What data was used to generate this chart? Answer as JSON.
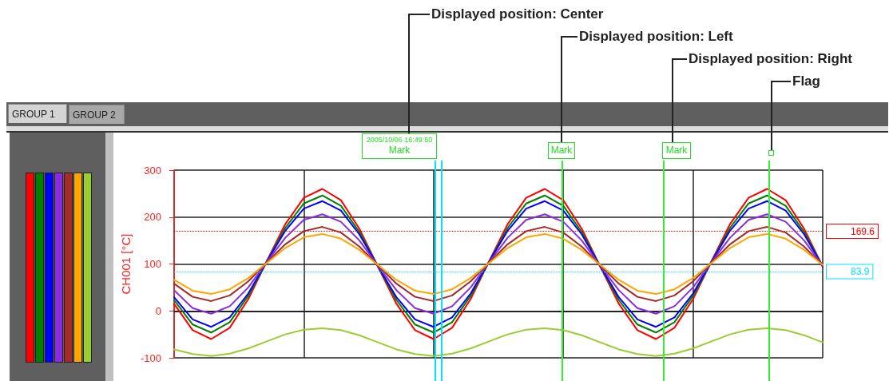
{
  "chart_data": {
    "type": "line",
    "categories": [
      null,
      null,
      null,
      null,
      null,
      null,
      null,
      null,
      null,
      null,
      null,
      null,
      null,
      null,
      null,
      null,
      null,
      null,
      null,
      null,
      null,
      null,
      null,
      null,
      null,
      null,
      null,
      null,
      null,
      null,
      null,
      null,
      null,
      null,
      null,
      null
    ],
    "ylabel": "CH001 [°C]",
    "ylim": [
      -100,
      300
    ],
    "yticks": [
      -100,
      0,
      100,
      200,
      300
    ],
    "grid": true,
    "marker": "none",
    "line_style": "solid",
    "series": [
      {
        "color": "#ff0000",
        "values": [
          15,
          -41,
          -60,
          -36,
          25,
          106,
          185,
          241,
          260,
          236,
          175,
          94,
          15,
          -41,
          -60,
          -36,
          25,
          106,
          185,
          241,
          260,
          236,
          175,
          94,
          15,
          -41,
          -60,
          -36,
          25,
          106,
          185,
          241,
          260,
          236,
          175,
          94
        ]
      },
      {
        "color": "#008000",
        "values": [
          23,
          -29,
          -46,
          -24,
          32,
          105,
          177,
          229,
          246,
          224,
          168,
          95,
          23,
          -29,
          -46,
          -24,
          32,
          105,
          177,
          229,
          246,
          224,
          168,
          95,
          23,
          -29,
          -46,
          -24,
          32,
          105,
          177,
          229,
          246,
          224,
          168,
          95
        ]
      },
      {
        "color": "#0000ff",
        "values": [
          29,
          -18,
          -34,
          -14,
          37,
          105,
          171,
          218,
          234,
          214,
          163,
          95,
          29,
          -18,
          -34,
          -14,
          37,
          105,
          171,
          218,
          234,
          214,
          163,
          95,
          29,
          -18,
          -34,
          -14,
          37,
          105,
          171,
          218,
          234,
          214,
          163,
          95
        ]
      },
      {
        "color": "#8a2be2",
        "values": [
          44,
          6,
          -6,
          10,
          50,
          104,
          156,
          194,
          206,
          190,
          150,
          96,
          44,
          6,
          -6,
          10,
          50,
          104,
          156,
          194,
          206,
          190,
          150,
          96,
          44,
          6,
          -6,
          10,
          50,
          104,
          156,
          194,
          206,
          190,
          150,
          96
        ]
      },
      {
        "color": "#a52a2a",
        "values": [
          58,
          30,
          21,
          33,
          63,
          103,
          142,
          170,
          179,
          167,
          137,
          97,
          58,
          30,
          21,
          33,
          63,
          103,
          142,
          170,
          179,
          167,
          137,
          97,
          58,
          30,
          21,
          33,
          63,
          103,
          142,
          170,
          179,
          167,
          137,
          97
        ]
      },
      {
        "color": "#ffa500",
        "values": [
          66,
          43,
          36,
          46,
          70,
          102,
          134,
          157,
          164,
          154,
          130,
          98,
          66,
          43,
          36,
          46,
          70,
          102,
          134,
          157,
          164,
          154,
          130,
          98,
          66,
          43,
          36,
          46,
          70,
          102,
          134,
          157,
          164,
          154,
          130,
          98
        ]
      },
      {
        "color": "#9acd32",
        "values": [
          -82,
          -92,
          -96,
          -91,
          -80,
          -65,
          -50,
          -40,
          -37,
          -41,
          -52,
          -67,
          -82,
          -92,
          -96,
          -91,
          -80,
          -65,
          -50,
          -40,
          -37,
          -41,
          -52,
          -67,
          -82,
          -92,
          -96,
          -91,
          -80,
          -65,
          -50,
          -40,
          -37,
          -41,
          -52,
          -67
        ]
      }
    ],
    "ref_lines": [
      {
        "axis": "y",
        "value": 169.6,
        "label": "169.6",
        "color": "#ff0000",
        "line_style": "dotted"
      },
      {
        "axis": "y",
        "value": 83.9,
        "label": "83.9",
        "color": "#00e5ff",
        "line_style": "dotted"
      }
    ],
    "annotations": [
      "Displayed position: Center",
      "Displayed position: Left",
      "Displayed position: Right",
      "Flag",
      "GROUP 1",
      "GROUP 2",
      "2005/10/06 16:49:50\nMark",
      "Mark",
      "Mark"
    ]
  }
}
